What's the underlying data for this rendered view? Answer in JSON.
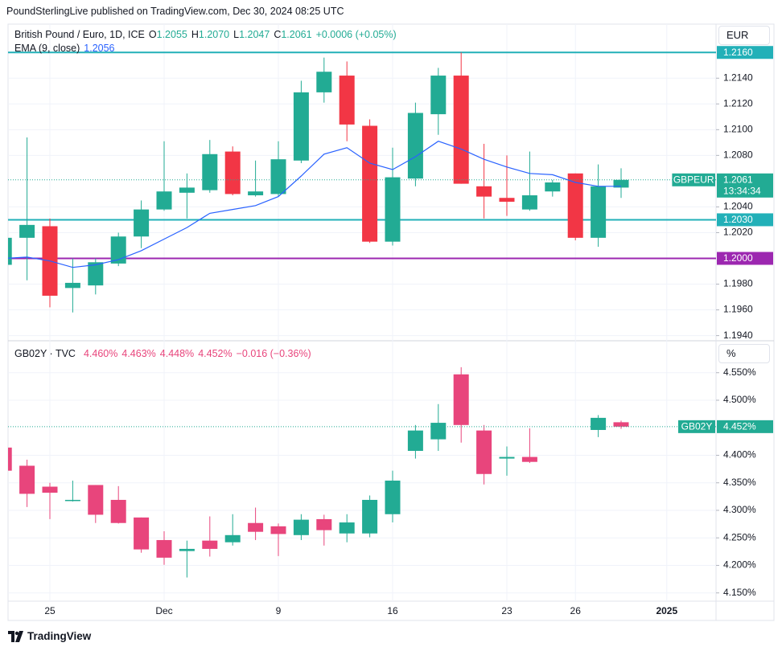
{
  "publisher": "PoundSterlingLive published on TradingView.com, Dec 30, 2024 08:25 UTC",
  "brand": "TradingView",
  "chart_data": [
    {
      "type": "candlestick",
      "unit": "EUR",
      "legend": {
        "title": "British Pound / Euro, 1D, ICE",
        "ohlc": [
          {
            "key": "O",
            "value": "1.2055"
          },
          {
            "key": "H",
            "value": "1.2070"
          },
          {
            "key": "L",
            "value": "1.2047"
          },
          {
            "key": "C",
            "value": "1.2061"
          }
        ],
        "change": "+0.0006 (+0.05%)"
      },
      "up_color": "#22ab94",
      "down_color": "#f23645",
      "open": [
        1.1995,
        1.2016,
        1.2025,
        1.1977,
        1.1979,
        1.1996,
        1.2017,
        1.2038,
        1.2051,
        1.2053,
        1.2083,
        1.2049,
        1.205,
        1.2076,
        1.2129,
        1.2142,
        1.2103,
        1.2013,
        1.2062,
        1.2112,
        1.2142,
        1.2056,
        1.2047,
        1.2038,
        1.2052,
        1.2066,
        1.2016,
        1.2055,
        null,
        null
      ],
      "high": [
        1.2018,
        1.2094,
        1.2031,
        1.2,
        1.2,
        1.202,
        1.2045,
        1.2091,
        1.2066,
        1.2092,
        1.2087,
        1.2076,
        1.2091,
        1.2138,
        1.2156,
        1.2153,
        1.2108,
        1.2086,
        1.2121,
        1.2148,
        1.216,
        1.2089,
        1.208,
        1.2083,
        1.2061,
        1.2066,
        1.2073,
        1.207,
        null,
        null
      ],
      "low": [
        1.199,
        1.1983,
        1.1962,
        1.1958,
        1.1972,
        1.1994,
        1.2008,
        1.2037,
        1.2031,
        1.2051,
        1.2049,
        1.2048,
        1.2048,
        1.2074,
        1.2121,
        1.2091,
        1.2012,
        1.201,
        1.2056,
        1.2096,
        1.2058,
        1.2031,
        1.2033,
        1.2037,
        1.2048,
        1.2014,
        1.2009,
        1.2047,
        null,
        null
      ],
      "close": [
        1.2016,
        1.2026,
        1.1971,
        1.1981,
        1.1997,
        1.2017,
        1.2038,
        1.2052,
        1.2055,
        1.2081,
        1.205,
        1.2052,
        1.2077,
        1.2129,
        1.2145,
        1.2104,
        1.2013,
        1.2063,
        1.2113,
        1.2142,
        1.2058,
        1.2048,
        1.2044,
        1.2049,
        1.2059,
        1.2016,
        1.2056,
        1.2061,
        null,
        null
      ],
      "ema": {
        "name": "EMA (9, close)",
        "value_label": "1.2056",
        "color": "#2962ff",
        "values": [
          1.2,
          1.2001,
          1.1998,
          1.1993,
          1.1995,
          1.1999,
          1.2006,
          1.2015,
          1.2024,
          1.2035,
          1.2038,
          1.2041,
          1.2048,
          1.2064,
          1.2081,
          1.2086,
          1.2074,
          1.2069,
          1.2079,
          1.2091,
          1.2085,
          1.2077,
          1.2071,
          1.2066,
          1.2065,
          1.2059,
          1.2056,
          1.2056,
          null,
          null
        ]
      },
      "levels": [
        {
          "value": 1.216,
          "label": "1.2160",
          "color": "#22b0b8"
        },
        {
          "value": 1.203,
          "label": "1.2030",
          "color": "#22b0b8"
        },
        {
          "value": 1.2,
          "label": "1.2000",
          "color": "#9c27b0"
        }
      ],
      "last": {
        "name": "GBPEUR",
        "value": 1.2061,
        "label": "1.2061",
        "countdown": "13:34:34"
      },
      "ylim": [
        1.1936,
        1.2182
      ],
      "yticks": [
        {
          "value": 1.214,
          "label": "1.2140"
        },
        {
          "value": 1.212,
          "label": "1.2120"
        },
        {
          "value": 1.21,
          "label": "1.2100"
        },
        {
          "value": 1.208,
          "label": "1.2080"
        },
        {
          "value": 1.204,
          "label": "1.2040"
        },
        {
          "value": 1.202,
          "label": "1.2020"
        },
        {
          "value": 1.198,
          "label": "1.1980"
        },
        {
          "value": 1.196,
          "label": "1.1960"
        },
        {
          "value": 1.194,
          "label": "1.1940"
        }
      ],
      "grid": true
    },
    {
      "type": "candlestick",
      "unit": "%",
      "legend": {
        "title": "GB02Y · TVC",
        "ohlc": [
          {
            "value": "4.460%"
          },
          {
            "value": "4.463%"
          },
          {
            "value": "4.448%"
          },
          {
            "value": "4.452%"
          }
        ],
        "change": "−0.016 (−0.36%)"
      },
      "up_color": "#22ab94",
      "down_color": "#e8457c",
      "categories": [
        null,
        null,
        "25",
        null,
        null,
        null,
        null,
        "Dec",
        null,
        null,
        null,
        null,
        "9",
        null,
        null,
        null,
        null,
        "16",
        null,
        null,
        null,
        null,
        "23",
        null,
        null,
        "26",
        null,
        null,
        null,
        "2025"
      ],
      "open": [
        4.414,
        4.381,
        4.343,
        4.318,
        4.346,
        4.319,
        4.287,
        4.246,
        4.226,
        4.245,
        4.242,
        4.277,
        4.271,
        4.255,
        4.284,
        4.258,
        4.258,
        4.293,
        4.408,
        4.429,
        4.547,
        4.445,
        4.394,
        4.397,
        null,
        null,
        4.446,
        4.46,
        null,
        null
      ],
      "high": [
        4.418,
        4.392,
        4.35,
        4.354,
        4.346,
        4.344,
        4.287,
        4.262,
        4.245,
        4.289,
        4.293,
        4.305,
        4.276,
        4.293,
        4.292,
        4.293,
        4.327,
        4.372,
        4.455,
        4.493,
        4.56,
        4.455,
        4.416,
        4.449,
        null,
        null,
        4.473,
        4.463,
        null,
        null
      ],
      "low": [
        4.368,
        4.306,
        4.284,
        4.316,
        4.277,
        4.276,
        4.223,
        4.201,
        4.178,
        4.216,
        4.236,
        4.246,
        4.217,
        4.246,
        4.236,
        4.242,
        4.251,
        4.278,
        4.394,
        4.408,
        4.423,
        4.347,
        4.363,
        4.386,
        null,
        null,
        4.433,
        4.448,
        null,
        null
      ],
      "close": [
        4.372,
        4.33,
        4.332,
        4.319,
        4.292,
        4.277,
        4.229,
        4.214,
        4.23,
        4.23,
        4.255,
        4.261,
        4.257,
        4.283,
        4.264,
        4.278,
        4.319,
        4.354,
        4.445,
        4.459,
        4.455,
        4.366,
        4.397,
        4.388,
        null,
        null,
        4.468,
        4.452,
        null,
        null
      ],
      "last": {
        "name": "GB02Y",
        "value": 4.452,
        "label": "4.452%"
      },
      "ylim": [
        4.135,
        4.608
      ],
      "yticks": [
        {
          "value": 4.55,
          "label": "4.550%"
        },
        {
          "value": 4.5,
          "label": "4.500%"
        },
        {
          "value": 4.4,
          "label": "4.400%"
        },
        {
          "value": 4.35,
          "label": "4.350%"
        },
        {
          "value": 4.3,
          "label": "4.300%"
        },
        {
          "value": 4.25,
          "label": "4.250%"
        },
        {
          "value": 4.2,
          "label": "4.200%"
        },
        {
          "value": 4.15,
          "label": "4.150%"
        }
      ],
      "grid": true
    }
  ]
}
